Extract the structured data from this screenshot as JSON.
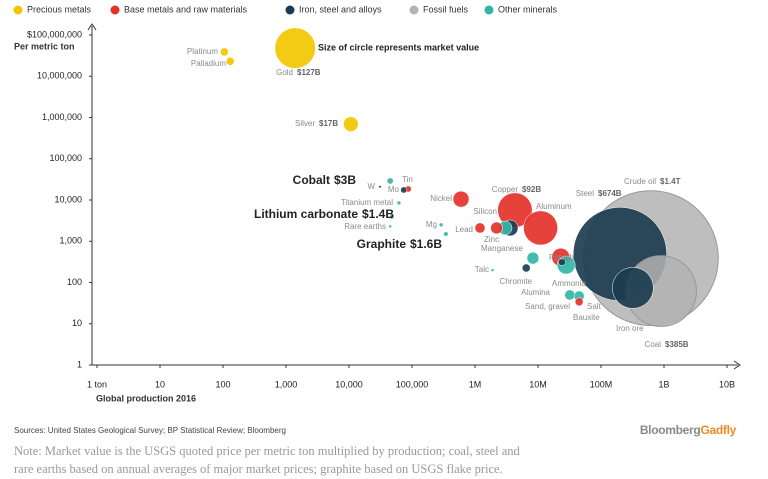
{
  "chart_data": {
    "type": "bubble",
    "y_label": "Per metric ton",
    "x_label": "Global production 2016",
    "annotation": "Size of circle represents market value",
    "log_x": true,
    "log_y": true,
    "legend": "top",
    "xlim": [
      1,
      10000000000
    ],
    "ylim": [
      1,
      100000000
    ],
    "xticks": [
      {
        "value": 1,
        "label": "1 ton"
      },
      10,
      100,
      {
        "value": 1000,
        "label": "1,000"
      },
      {
        "value": 10000,
        "label": "10,000"
      },
      {
        "value": 100000,
        "label": "100,000"
      },
      {
        "value": 1000000,
        "label": "1M"
      },
      {
        "value": 10000000,
        "label": "10M"
      },
      {
        "value": 100000000,
        "label": "100M"
      },
      {
        "value": 1000000000,
        "label": "1B"
      },
      {
        "value": 10000000000,
        "label": "10B"
      }
    ],
    "yticks": [
      1,
      10,
      100,
      {
        "value": 1000,
        "label": "1,000"
      },
      {
        "value": 10000,
        "label": "10,000"
      },
      {
        "value": 100000,
        "label": "100,000"
      },
      {
        "value": 1000000,
        "label": "1,000,000"
      },
      {
        "value": 10000000,
        "label": "10,000,000"
      },
      {
        "value": 100000000,
        "label": "$100,000,000"
      }
    ],
    "series": [
      {
        "name": "Precious metals",
        "color": "#f2c500",
        "labels": [
          "Platinum",
          "Palladium",
          "Gold",
          "Silver"
        ],
        "x": [
          105,
          130,
          1400,
          10700
        ],
        "values": [
          39000000,
          23000000,
          48000000,
          690000
        ],
        "sizes": [
          5,
          5,
          127,
          17
        ],
        "size_labels": [
          null,
          null,
          "$127B",
          "$17B"
        ]
      },
      {
        "name": "Base metals and raw materials",
        "color": "#e5312b",
        "labels": [
          "Tin",
          "Nickel",
          "Lead",
          "Zinc",
          "Copper",
          "Aluminum",
          null,
          "Salt"
        ],
        "x": [
          87000,
          600000,
          1200000,
          2200000,
          4300000,
          11000000,
          23000000,
          45000000
        ],
        "values": [
          18500,
          10500,
          2100,
          2100,
          5700,
          2100,
          410,
          34
        ],
        "sizes": [
          3,
          20,
          8,
          11,
          92,
          90,
          25,
          5
        ],
        "size_labels": [
          null,
          null,
          null,
          null,
          "$92B",
          null,
          null,
          null
        ]
      },
      {
        "name": "Iron, steel and alloys",
        "color": "#1c3d50",
        "labels": [
          "W",
          "Mo",
          "Manganese",
          "Chromite",
          "Alumina",
          "Steel",
          "Iron ore"
        ],
        "x": [
          31000,
          74000,
          3600000,
          6500000,
          24000000,
          200000000,
          320000000
        ],
        "values": [
          21000,
          17500,
          2100,
          225,
          315,
          490,
          74
        ],
        "sizes": [
          0.5,
          3,
          20,
          5,
          4,
          674,
          130
        ],
        "size_labels": [
          null,
          null,
          null,
          null,
          null,
          "$674B",
          null
        ]
      },
      {
        "name": "Fossil fuels",
        "color": "#b3b3b3",
        "labels": [
          "Crude oil",
          "Coal"
        ],
        "x": [
          620000000,
          900000000
        ],
        "values": [
          390,
          62
        ],
        "sizes": [
          1400,
          385
        ],
        "size_labels": [
          "$1.4T",
          "$385B"
        ]
      },
      {
        "name": "Other minerals",
        "color": "#33b5a6",
        "labels": [
          "Cobalt",
          "Titanium metal",
          "Lithium carbonate",
          "Rare earths",
          "Mg",
          "Graphite",
          "Silicon",
          "Potash",
          "Talc",
          "Ammonia",
          "Sand, gravel",
          "Bauxite"
        ],
        "x": [
          45000,
          62000,
          48000,
          45000,
          290000,
          345000,
          3000000,
          8300000,
          1900000,
          28000000,
          32000000,
          45000000
        ],
        "values": [
          29000,
          8500,
          3900,
          2300,
          2500,
          1500,
          2100,
          390,
          200,
          265,
          50,
          47
        ],
        "sizes": [
          3,
          1.2,
          1.4,
          0.7,
          1.2,
          1.6,
          15,
          11,
          0.7,
          25,
          8,
          8
        ],
        "size_labels": [
          "$3B",
          null,
          "$1.4B",
          null,
          null,
          "$1.6B",
          null,
          null,
          null,
          null,
          null,
          null
        ]
      }
    ],
    "source": "Sources: United States Geological Survey; BP Statistical Review; Bloomberg",
    "brand": {
      "first": "Bloomberg",
      "second": "Gadfly"
    },
    "note_lines": [
      "Note: Market value is the USGS quoted price per metric ton multiplied by production; coal, steel and",
      "rare earths based on annual averages of major market prices; graphite based on USGS flake price."
    ]
  }
}
